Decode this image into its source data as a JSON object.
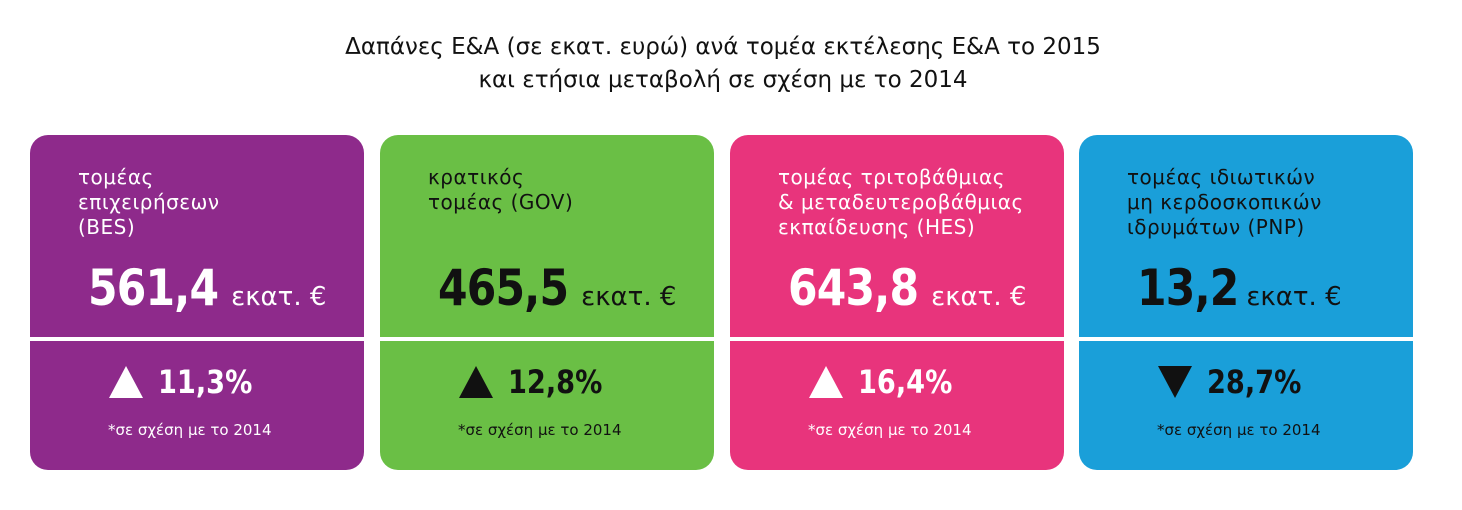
{
  "header": {
    "title": [
      "Δαπάνες Ε&Α (σε εκατ. ευρώ) ανά τομέα εκτέλεσης Ε&Α το 2015",
      "και ετήσια μεταβολή σε σχέση με το 2014"
    ]
  },
  "cards": [
    {
      "label": [
        "τομέας",
        "επιχειρήσεων",
        "(BES)"
      ],
      "value": "561,4",
      "unit": "εκατ. €",
      "direction": "up",
      "change": "11,3%",
      "note": "*σε σχέση με το 2014",
      "color": "#8e2a8b",
      "text_color": "#ffffff"
    },
    {
      "label": [
        "κρατικός",
        "τομέας (GOV)"
      ],
      "value": "465,5",
      "unit": "εκατ. €",
      "direction": "up",
      "change": "12,8%",
      "note": "*σε σχέση με το 2014",
      "color": "#6abf45",
      "text_color": "#111111"
    },
    {
      "label": [
        "τομέας τριτοβάθμιας",
        "& μεταδευτεροβάθμιας",
        "εκπαίδευσης (HES)"
      ],
      "value": "643,8",
      "unit": "εκατ. €",
      "direction": "up",
      "change": "16,4%",
      "note": "*σε σχέση με το 2014",
      "color": "#e8347c",
      "text_color": "#ffffff"
    },
    {
      "label": [
        "τομέας ιδιωτικών",
        "μη κερδοσκοπικών",
        "ιδρυμάτων (PNP)"
      ],
      "value": "13,2",
      "unit": "εκατ. €",
      "direction": "down",
      "change": "28,7%",
      "note": "*σε σχέση με το 2014",
      "color": "#1a9fd9",
      "text_color": "#111111"
    }
  ]
}
